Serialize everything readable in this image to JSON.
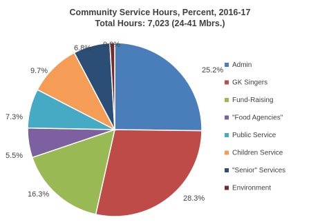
{
  "chart_data": {
    "type": "pie",
    "title": "Community Service Hours, Percent, 2016-17",
    "subtitle": "Total Hours:  7,023 (24-41 Mbrs.)",
    "legend_position": "right",
    "slices": [
      {
        "name": "Admin",
        "value": 25.2,
        "label": "25.2%",
        "color": "#4a7ebb"
      },
      {
        "name": "GK Singers",
        "value": 28.3,
        "label": "28.3%",
        "color": "#be4b48"
      },
      {
        "name": "Fund-Raising",
        "value": 16.3,
        "label": "16.3%",
        "color": "#98b954"
      },
      {
        "name": "\"Food Agencies\"",
        "value": 5.5,
        "label": "5.5%",
        "color": "#7d60a0"
      },
      {
        "name": "Public Service",
        "value": 7.3,
        "label": "7.3%",
        "color": "#46aac5"
      },
      {
        "name": "Children Service",
        "value": 9.7,
        "label": "9.7%",
        "color": "#f59d56"
      },
      {
        "name": "\"Senior\" Services",
        "value": 6.8,
        "label": "6.8%",
        "color": "#2c4d75"
      },
      {
        "name": "Environment",
        "value": 0.9,
        "label": "0.9%",
        "color": "#772c2a"
      }
    ]
  }
}
